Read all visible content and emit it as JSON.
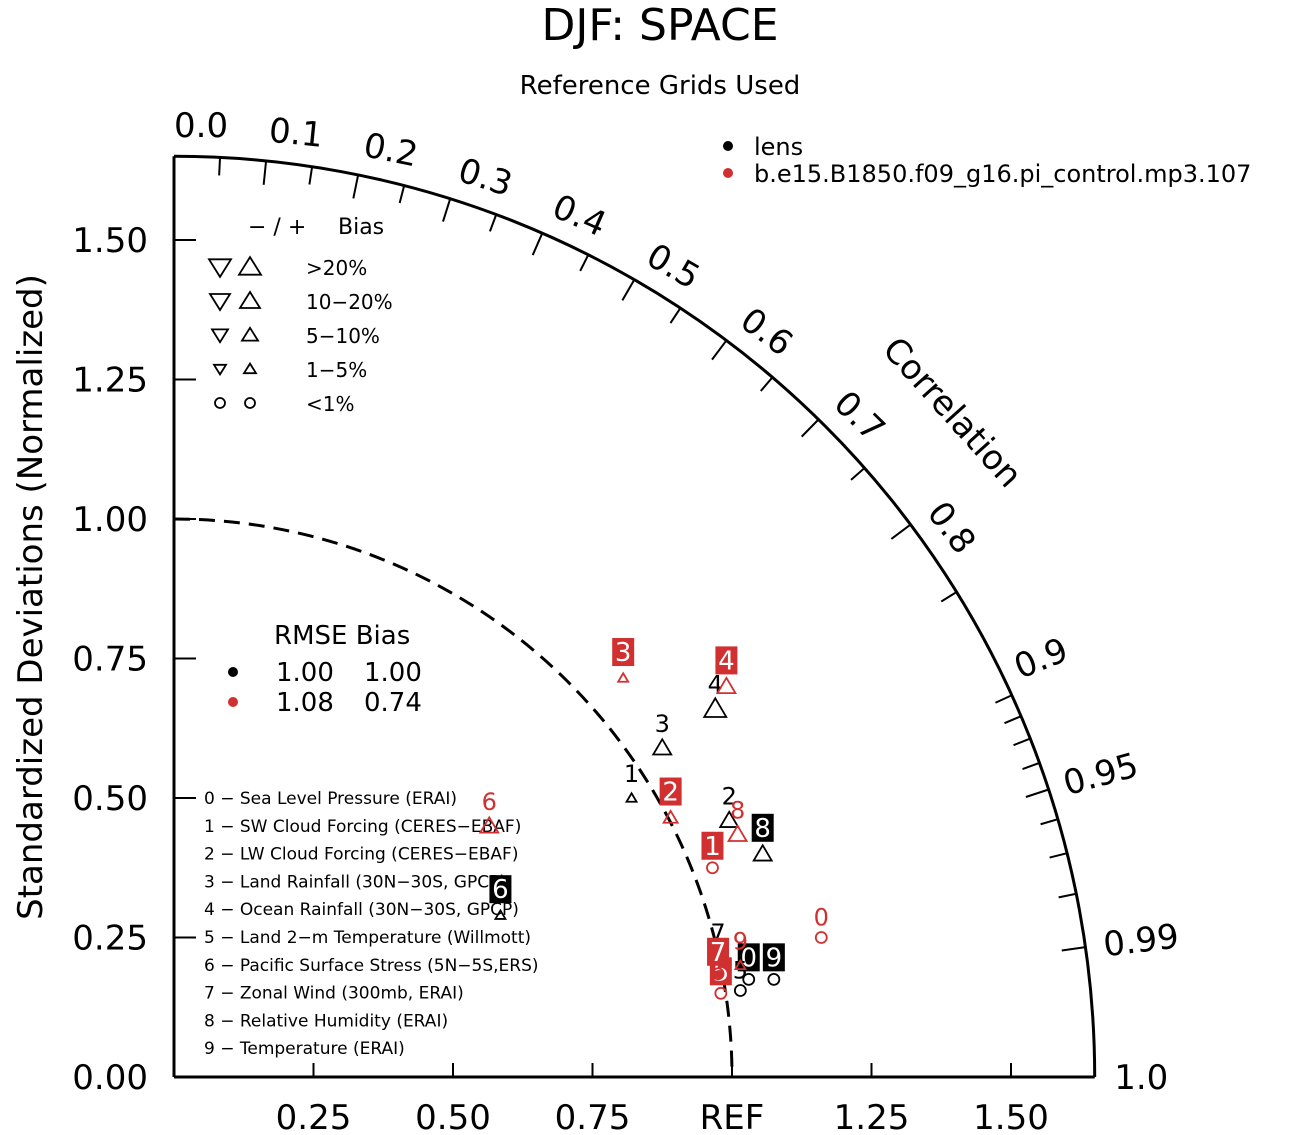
{
  "title": "DJF: SPACE",
  "subtitle": "Reference Grids Used",
  "y_axis_label": "Standardized Deviations (Normalized)",
  "correlation_label": "Correlation",
  "colors": {
    "lens": "#000000",
    "pi_control": "#d03030"
  },
  "legend": {
    "cases": [
      {
        "name": "lens",
        "color": "#000000"
      },
      {
        "name": "b.e15.B1850.f09_g16.pi_control.mp3.107",
        "color": "#d03030"
      }
    ],
    "bias_header": {
      "signs": "− / +",
      "label": "Bias"
    },
    "bias_rows": [
      "&gt;20%",
      "10−20%",
      "5−10%",
      "1−5%",
      "&lt;1%"
    ],
    "stats_header": "RMSE Bias",
    "stats_rows": [
      {
        "rmse": "1.00",
        "bias": "1.00",
        "color": "#000000"
      },
      {
        "rmse": "1.08",
        "bias": "0.74",
        "color": "#d03030"
      }
    ],
    "variables": [
      "0 − Sea Level Pressure (ERAI)",
      "1 − SW Cloud Forcing (CERES−EBAF)",
      "2 − LW Cloud Forcing (CERES−EBAF)",
      "3 − Land Rainfall (30N−30S, GPCP)",
      "4 − Ocean Rainfall (30N−30S, GPCP)",
      "5 − Land 2−m Temperature (Willmott)",
      "6 − Pacific Surface Stress (5N−5S,ERS)",
      "7 − Zonal Wind (300mb, ERAI)",
      "8 − Relative Humidity (ERAI)",
      "9 − Temperature (ERAI)"
    ]
  },
  "chart_data": {
    "type": "scatter",
    "subtype": "taylor_diagram",
    "title": "DJF: SPACE",
    "subtitle": "Reference Grids Used",
    "ylabel": "Standardized Deviations (Normalized)",
    "radial_max": 1.65,
    "ref_label": "REF",
    "x_ticks": [
      "0.25",
      "0.50",
      "0.75",
      "REF",
      "1.25",
      "1.50"
    ],
    "x_tick_values": [
      0.25,
      0.5,
      0.75,
      1.0,
      1.25,
      1.5
    ],
    "y_ticks": [
      "0.00",
      "0.25",
      "0.50",
      "0.75",
      "1.00",
      "1.25",
      "1.50"
    ],
    "y_tick_values": [
      0.0,
      0.25,
      0.5,
      0.75,
      1.0,
      1.25,
      1.5
    ],
    "corr_labels": [
      "0.0",
      "0.1",
      "0.2",
      "0.3",
      "0.4",
      "0.5",
      "0.6",
      "0.7",
      "0.8",
      "0.9",
      "0.95",
      "0.99",
      "1.0"
    ],
    "corr_label_values": [
      0.0,
      0.1,
      0.2,
      0.3,
      0.4,
      0.5,
      0.6,
      0.7,
      0.8,
      0.9,
      0.95,
      0.99,
      1.0
    ],
    "series": [
      {
        "name": "lens",
        "color": "#000000",
        "points": [
          {
            "id": "0",
            "x": 1.03,
            "y": 0.175,
            "marker": "circle",
            "size": 1,
            "label_style": "box"
          },
          {
            "id": "1",
            "x": 0.82,
            "y": 0.5,
            "marker": "up",
            "size": 1,
            "label_style": "plain"
          },
          {
            "id": "2",
            "x": 0.995,
            "y": 0.46,
            "marker": "up",
            "size": 3,
            "label_style": "plain"
          },
          {
            "id": "3",
            "x": 0.875,
            "y": 0.59,
            "marker": "up",
            "size": 3,
            "label_style": "plain"
          },
          {
            "id": "4",
            "x": 0.97,
            "y": 0.66,
            "marker": "up",
            "size": 4,
            "label_style": "plain"
          },
          {
            "id": "5",
            "x": 1.015,
            "y": 0.155,
            "marker": "circle",
            "size": 1,
            "label_style": "plain"
          },
          {
            "id": "6",
            "x": 0.585,
            "y": 0.29,
            "marker": "up",
            "size": 1,
            "label_style": "box"
          },
          {
            "id": "7",
            "x": 0.975,
            "y": 0.215,
            "marker": "up",
            "size": 1,
            "label_style": "plain"
          },
          {
            "id": "8",
            "x": 1.055,
            "y": 0.4,
            "marker": "up",
            "size": 3,
            "label_style": "box"
          },
          {
            "id": "9",
            "x": 1.075,
            "y": 0.175,
            "marker": "circle",
            "size": 1,
            "label_style": "box"
          }
        ]
      },
      {
        "name": "b.e15.B1850.f09_g16.pi_control.mp3.107",
        "color": "#d03030",
        "points": [
          {
            "id": "0",
            "x": 1.16,
            "y": 0.25,
            "marker": "circle",
            "size": 1,
            "label_style": "plain"
          },
          {
            "id": "1",
            "x": 0.965,
            "y": 0.375,
            "marker": "circle",
            "size": 1,
            "label_style": "box"
          },
          {
            "id": "2",
            "x": 0.89,
            "y": 0.465,
            "marker": "up",
            "size": 2,
            "label_style": "box"
          },
          {
            "id": "3",
            "x": 0.805,
            "y": 0.715,
            "marker": "up",
            "size": 1,
            "label_style": "box"
          },
          {
            "id": "4",
            "x": 0.99,
            "y": 0.7,
            "marker": "up",
            "size": 3,
            "label_style": "box"
          },
          {
            "id": "5",
            "x": 0.98,
            "y": 0.15,
            "marker": "circle",
            "size": 1,
            "label_style": "box"
          },
          {
            "id": "6",
            "x": 0.565,
            "y": 0.45,
            "marker": "up",
            "size": 3,
            "label_style": "plain"
          },
          {
            "id": "7",
            "x": 0.975,
            "y": 0.185,
            "marker": "circle",
            "size": 1,
            "label_style": "box"
          },
          {
            "id": "8",
            "x": 1.01,
            "y": 0.435,
            "marker": "up",
            "size": 3,
            "label_style": "plain"
          },
          {
            "id": "9",
            "x": 1.015,
            "y": 0.2,
            "marker": "up",
            "size": 1,
            "label_style": "plain"
          }
        ]
      }
    ]
  }
}
